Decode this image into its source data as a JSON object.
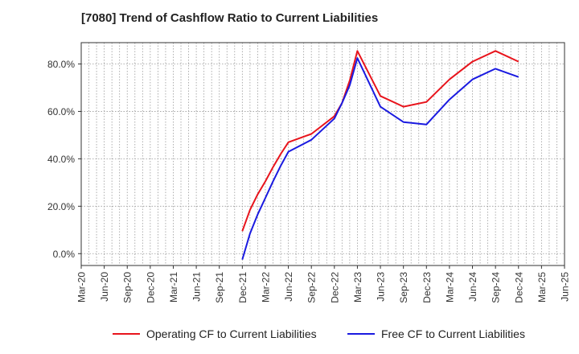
{
  "chart_data": {
    "type": "line",
    "title": "[7080]  Trend of Cashflow Ratio to Current Liabilities",
    "xlabel": "",
    "ylabel": "",
    "x_tick_labels": [
      "Mar-20",
      "Jun-20",
      "Sep-20",
      "Dec-20",
      "Mar-21",
      "Jun-21",
      "Sep-21",
      "Dec-21",
      "Mar-22",
      "Jun-22",
      "Sep-22",
      "Dec-22",
      "Mar-23",
      "Jun-23",
      "Sep-23",
      "Dec-23",
      "Mar-24",
      "Jun-24",
      "Sep-24",
      "Dec-24",
      "Mar-25",
      "Jun-25"
    ],
    "y_ticks": [
      0,
      20,
      40,
      60,
      80
    ],
    "y_tick_labels": [
      "0.0%",
      "20.0%",
      "40.0%",
      "60.0%",
      "80.0%"
    ],
    "ylim": [
      -5,
      89
    ],
    "grid": true,
    "legend_position": "bottom",
    "series": [
      {
        "name": "Operating CF to Current Liabilities",
        "color": "#e8141c",
        "points": [
          [
            "Dec-21",
            9.5
          ],
          [
            "Jan-22",
            18.5
          ],
          [
            "Feb-22",
            25.0
          ],
          [
            "Mar-22",
            30.5
          ],
          [
            "Apr-22",
            36.5
          ],
          [
            "May-22",
            42.0
          ],
          [
            "Jun-22",
            47.0
          ],
          [
            "Sep-22",
            50.5
          ],
          [
            "Dec-22",
            58.0
          ],
          [
            "Jan-23",
            63.5
          ],
          [
            "Feb-23",
            73.0
          ],
          [
            "Mar-23",
            85.5
          ],
          [
            "Jun-23",
            66.5
          ],
          [
            "Sep-23",
            62.0
          ],
          [
            "Dec-23",
            64.0
          ],
          [
            "Mar-24",
            73.5
          ],
          [
            "Jun-24",
            81.0
          ],
          [
            "Sep-24",
            85.5
          ],
          [
            "Dec-24",
            81.0
          ]
        ]
      },
      {
        "name": "Free CF to Current Liabilities",
        "color": "#1a1ae0",
        "points": [
          [
            "Dec-21",
            -2.5
          ],
          [
            "Jan-22",
            8.5
          ],
          [
            "Feb-22",
            16.5
          ],
          [
            "Mar-22",
            23.5
          ],
          [
            "Apr-22",
            30.5
          ],
          [
            "May-22",
            37.0
          ],
          [
            "Jun-22",
            43.0
          ],
          [
            "Sep-22",
            48.0
          ],
          [
            "Dec-22",
            57.0
          ],
          [
            "Jan-23",
            63.5
          ],
          [
            "Feb-23",
            71.0
          ],
          [
            "Mar-23",
            82.5
          ],
          [
            "Jun-23",
            62.0
          ],
          [
            "Sep-23",
            55.5
          ],
          [
            "Dec-23",
            54.5
          ],
          [
            "Mar-24",
            65.0
          ],
          [
            "Jun-24",
            73.5
          ],
          [
            "Sep-24",
            78.0
          ],
          [
            "Dec-24",
            74.5
          ]
        ]
      }
    ]
  }
}
